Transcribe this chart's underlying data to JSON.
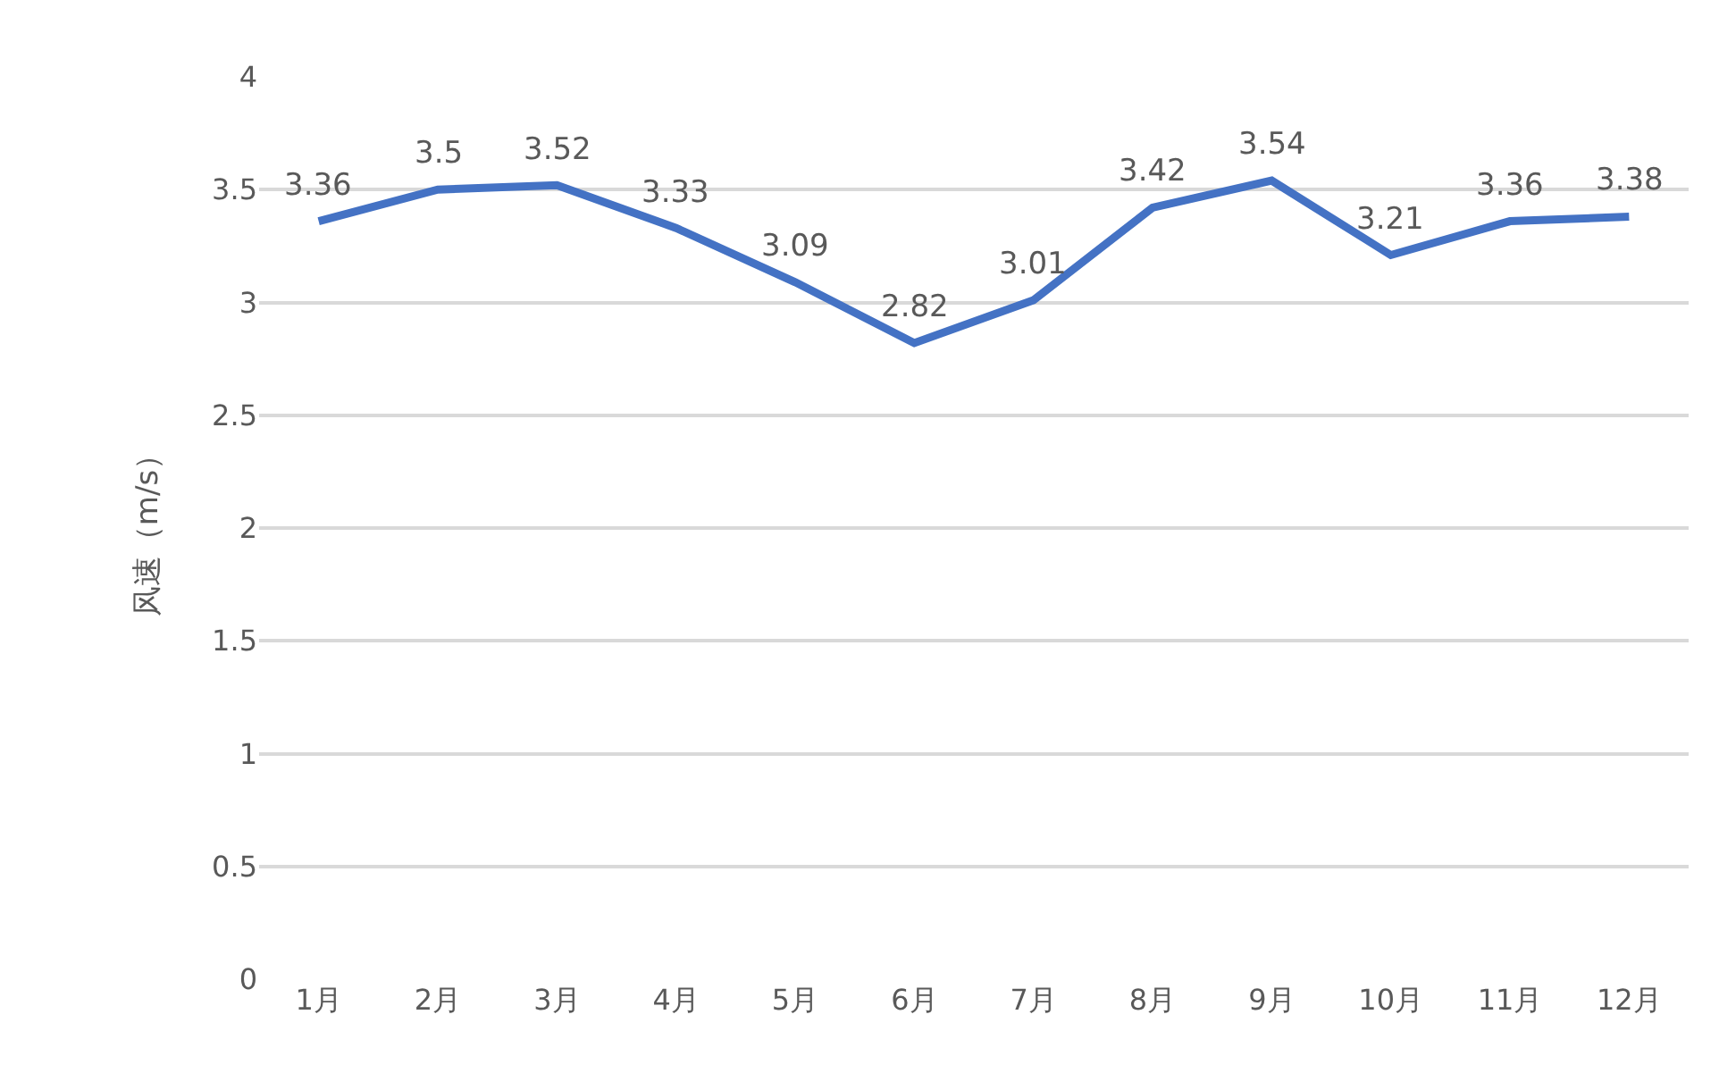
{
  "chart_data": {
    "type": "line",
    "ylabel": "风速（m/s）",
    "categories": [
      "1月",
      "2月",
      "3月",
      "4月",
      "5月",
      "6月",
      "7月",
      "8月",
      "9月",
      "10月",
      "11月",
      "12月"
    ],
    "series": [
      {
        "color": "#4472c4",
        "values": [
          3.36,
          3.5,
          3.52,
          3.33,
          3.09,
          2.82,
          3.01,
          3.42,
          3.54,
          3.21,
          3.36,
          3.38
        ]
      }
    ],
    "ylim": [
      0,
      4
    ],
    "yticks": [
      0,
      0.5,
      1,
      1.5,
      2,
      2.5,
      3,
      3.5,
      4
    ],
    "grid": "y",
    "data_labels": true,
    "marker": "none",
    "line_style": "solid"
  }
}
